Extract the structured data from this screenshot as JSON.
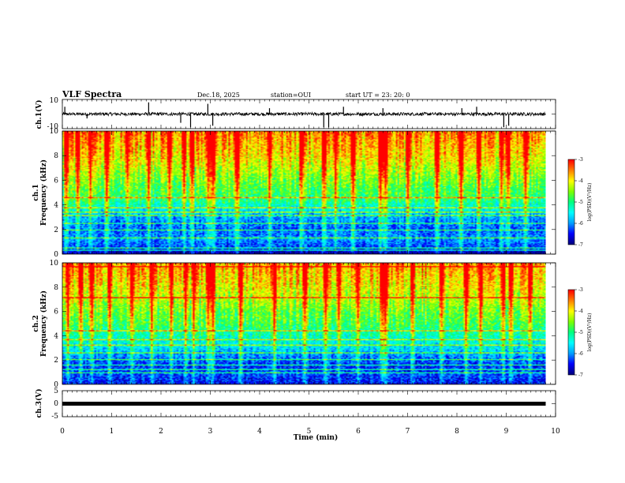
{
  "header": {
    "title": "VLF Spectra",
    "date": "Dec.18, 2025",
    "station": "station=OUI",
    "start": "start  UT =   23: 20: 0"
  },
  "chart_data": [
    {
      "type": "line",
      "panel": "waveform-ch1",
      "ylabel": "ch.1(V)",
      "ylim": [
        -10,
        10
      ],
      "y_ticks": [
        "10",
        "-10"
      ],
      "xlim": [
        0,
        10
      ],
      "data_extent_min": 9.8,
      "baseline": 0,
      "spikes": [
        {
          "x": 0.05,
          "y": 5
        },
        {
          "x": 0.5,
          "y": -3
        },
        {
          "x": 1.75,
          "y": 8
        },
        {
          "x": 2.4,
          "y": -6
        },
        {
          "x": 2.6,
          "y": -9
        },
        {
          "x": 2.95,
          "y": 7
        },
        {
          "x": 3.05,
          "y": -8
        },
        {
          "x": 4.2,
          "y": 4
        },
        {
          "x": 5.3,
          "y": -9
        },
        {
          "x": 5.4,
          "y": -9
        },
        {
          "x": 5.7,
          "y": 5
        },
        {
          "x": 6.5,
          "y": 4
        },
        {
          "x": 8.1,
          "y": 4
        },
        {
          "x": 8.4,
          "y": 5
        },
        {
          "x": 8.95,
          "y": -9
        },
        {
          "x": 9.05,
          "y": -8
        }
      ]
    },
    {
      "type": "heatmap",
      "panel": "spectrogram-ch1",
      "ylabel_line1": "ch.1",
      "ylabel_line2": "Frequency (kHz)",
      "ylim": [
        0,
        10
      ],
      "y_ticks": [
        "0",
        "2",
        "4",
        "6",
        "8",
        "10"
      ],
      "xlim": [
        0,
        10
      ],
      "data_extent_min": 9.8,
      "colorbar_label": "log(PSD)(V²/Hz)",
      "colorbar_range": [
        -7,
        -3
      ],
      "colorbar_ticks": [
        "-3",
        "-4",
        "-5",
        "-6",
        "-7"
      ],
      "band_profile": [
        {
          "f": 0.0,
          "level": -7.0
        },
        {
          "f": 0.5,
          "level": -6.3
        },
        {
          "f": 1.2,
          "level": -6.0
        },
        {
          "f": 2.0,
          "level": -6.2
        },
        {
          "f": 3.0,
          "level": -5.9
        },
        {
          "f": 3.6,
          "level": -5.5
        },
        {
          "f": 4.5,
          "level": -4.9
        },
        {
          "f": 5.5,
          "level": -4.7
        },
        {
          "f": 6.5,
          "level": -4.4
        },
        {
          "f": 8.0,
          "level": -3.9
        },
        {
          "f": 10.0,
          "level": -3.5
        }
      ],
      "impulsive_events_min": [
        0.05,
        0.3,
        0.55,
        0.9,
        1.3,
        1.75,
        2.15,
        2.45,
        2.62,
        2.95,
        3.05,
        3.55,
        4.2,
        4.85,
        5.3,
        5.55,
        5.9,
        6.45,
        6.55,
        7.0,
        7.6,
        8.1,
        8.45,
        8.9,
        9.05,
        9.4
      ],
      "narrowband_lines_khz": [
        0.3,
        0.5,
        1.3,
        1.9,
        2.5,
        3.1,
        3.4,
        3.8,
        4.6
      ]
    },
    {
      "type": "heatmap",
      "panel": "spectrogram-ch2",
      "ylabel_line1": "ch.2",
      "ylabel_line2": "Frequency (kHz)",
      "ylim": [
        0,
        10
      ],
      "y_ticks": [
        "0",
        "2",
        "4",
        "6",
        "8",
        "10"
      ],
      "xlim": [
        0,
        10
      ],
      "data_extent_min": 9.8,
      "colorbar_label": "log(PSD)(V²/Hz)",
      "colorbar_range": [
        -7,
        -3
      ],
      "colorbar_ticks": [
        "-3",
        "-4",
        "-5",
        "-6",
        "-7"
      ],
      "band_profile": [
        {
          "f": 0.0,
          "level": -6.5
        },
        {
          "f": 0.8,
          "level": -6.3
        },
        {
          "f": 1.5,
          "level": -6.4
        },
        {
          "f": 2.2,
          "level": -6.1
        },
        {
          "f": 3.0,
          "level": -5.6
        },
        {
          "f": 4.0,
          "level": -5.2
        },
        {
          "f": 5.0,
          "level": -4.8
        },
        {
          "f": 6.0,
          "level": -4.6
        },
        {
          "f": 7.2,
          "level": -4.2
        },
        {
          "f": 8.5,
          "level": -3.9
        },
        {
          "f": 10.0,
          "level": -3.6
        }
      ],
      "impulsive_events_min": [
        0.1,
        0.35,
        0.6,
        0.95,
        1.4,
        1.8,
        2.2,
        2.5,
        2.65,
        2.95,
        3.05,
        3.6,
        4.3,
        4.9,
        5.35,
        5.6,
        6.0,
        6.5,
        6.55,
        7.1,
        7.7,
        8.2,
        8.5,
        8.95,
        9.1,
        9.5
      ],
      "narrowband_lines_khz": [
        0.9,
        1.2,
        1.6,
        2.0,
        2.6,
        3.2,
        3.7,
        4.4,
        7.2,
        9.7
      ]
    },
    {
      "type": "line",
      "panel": "waveform-ch3",
      "ylabel": "ch.3(V)",
      "ylim": [
        -5,
        5
      ],
      "y_ticks": [
        "5",
        "0",
        "-5"
      ],
      "xlim": [
        0,
        10
      ],
      "data_extent_min": 9.8,
      "baseline": 0,
      "spikes": []
    }
  ],
  "xaxis": {
    "label": "Time (min)",
    "ticks": [
      "0",
      "1",
      "2",
      "3",
      "4",
      "5",
      "6",
      "7",
      "8",
      "9",
      "10"
    ]
  },
  "colors": {
    "background": "#ffffff",
    "frame": "#000000",
    "colormap": [
      "#000080",
      "#0000ff",
      "#00a0ff",
      "#00ffff",
      "#00ff80",
      "#80ff00",
      "#ffff00",
      "#ff8000",
      "#ff0000",
      "#ffffff"
    ]
  }
}
